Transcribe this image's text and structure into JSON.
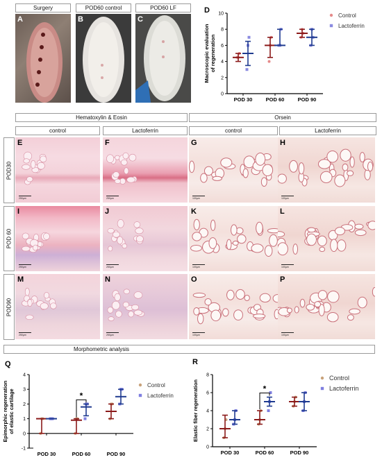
{
  "top_panels": [
    {
      "letter": "A",
      "header": "Surgery"
    },
    {
      "letter": "B",
      "header": "POD60 control"
    },
    {
      "letter": "C",
      "header": "POD60 LF"
    }
  ],
  "histo_headers": {
    "left_group": "Hematoxylin & Eosin",
    "right_group": "Orsein",
    "columns": [
      "control",
      "Lactoferrin",
      "control",
      "Lactoferrin"
    ]
  },
  "row_labels": [
    "POD30",
    "POD 60",
    "POD90"
  ],
  "histo_letters": [
    [
      "E",
      "F",
      "G",
      "H"
    ],
    [
      "I",
      "J",
      "K",
      "L"
    ],
    [
      "M",
      "N",
      "O",
      "P"
    ]
  ],
  "scalebars": {
    "he": "250µm",
    "orsein": "100µm"
  },
  "morpho_header": "Morphometric analysis",
  "colors": {
    "control": "#8b1a1a",
    "lactoferrin": "#1f3b8f",
    "control_point": "#e58a8a",
    "lactoferrin_point": "#8b8be0",
    "control_point_qr": "#c8a27a",
    "lactoferrin_point_qr": "#7f7fe0"
  },
  "chart_data": [
    {
      "panel": "D",
      "type": "scatter",
      "ylabel": "Macroscopic evaluation of regeneration",
      "categories": [
        "POD 30",
        "POD 60",
        "POD 90"
      ],
      "ylim": [
        0,
        10
      ],
      "yticks": [
        0,
        2,
        4,
        6,
        8,
        10
      ],
      "legend_position": "top-right",
      "series": [
        {
          "name": "Control",
          "mean": [
            4.5,
            6,
            7.5
          ],
          "err_low": [
            4,
            4.5,
            7
          ],
          "err_high": [
            5,
            7,
            8
          ],
          "points": [
            [
              4.5,
              4.5,
              5
            ],
            [
              4,
              6,
              7
            ],
            [
              7,
              8,
              7.5
            ]
          ]
        },
        {
          "name": "Lactoferrin",
          "mean": [
            5,
            6,
            7
          ],
          "err_low": [
            3.5,
            6,
            6
          ],
          "err_high": [
            6.5,
            8,
            8
          ],
          "points": [
            [
              3,
              6,
              7
            ],
            [
              6,
              6,
              8
            ],
            [
              6,
              8,
              7
            ]
          ]
        }
      ]
    },
    {
      "panel": "Q",
      "type": "scatter",
      "ylabel": "Epimorphic regeneration of elastic cartilage",
      "categories": [
        "POD 30",
        "POD 60",
        "POD 90"
      ],
      "ylim": [
        -1,
        4
      ],
      "yticks": [
        -1,
        0,
        1,
        2,
        3,
        4
      ],
      "legend_position": "top-right",
      "significance": {
        "category": "POD 60",
        "label": "*"
      },
      "series": [
        {
          "name": "Control",
          "mean": [
            1,
            0.9,
            1.5
          ],
          "err_low": [
            0,
            0,
            1
          ],
          "err_high": [
            1,
            1,
            2
          ],
          "points": [
            [
              0,
              1,
              1
            ],
            [
              0,
              1,
              1
            ],
            [
              1,
              2,
              2
            ]
          ]
        },
        {
          "name": "Lactoferrin",
          "mean": [
            1,
            1.8,
            2.5
          ],
          "err_low": [
            1,
            1.2,
            2
          ],
          "err_high": [
            1,
            2,
            3
          ],
          "points": [
            [
              1,
              1,
              1
            ],
            [
              1,
              2,
              2
            ],
            [
              2,
              3,
              3
            ]
          ]
        }
      ]
    },
    {
      "panel": "R",
      "type": "scatter",
      "ylabel": "Elastic fiber regeneration",
      "categories": [
        "POD 30",
        "POD 60",
        "POD 90"
      ],
      "ylim": [
        0,
        8
      ],
      "yticks": [
        0,
        2,
        4,
        6,
        8
      ],
      "legend_position": "top-right",
      "significance": {
        "category": "POD 60",
        "label": "*"
      },
      "series": [
        {
          "name": "Control",
          "mean": [
            2,
            3,
            5
          ],
          "err_low": [
            1,
            2.5,
            4.5
          ],
          "err_high": [
            3.5,
            4,
            5.5
          ],
          "points": [
            [
              1,
              2,
              3
            ],
            [
              2.5,
              3,
              4
            ],
            [
              4.5,
              5,
              5.5
            ]
          ]
        },
        {
          "name": "Lactoferrin",
          "mean": [
            3,
            5,
            5
          ],
          "err_low": [
            2.5,
            4.5,
            4
          ],
          "err_high": [
            4,
            5.5,
            6
          ],
          "points": [
            [
              2.5,
              3,
              4
            ],
            [
              4,
              5,
              6
            ],
            [
              4,
              5,
              6
            ]
          ]
        }
      ]
    }
  ]
}
